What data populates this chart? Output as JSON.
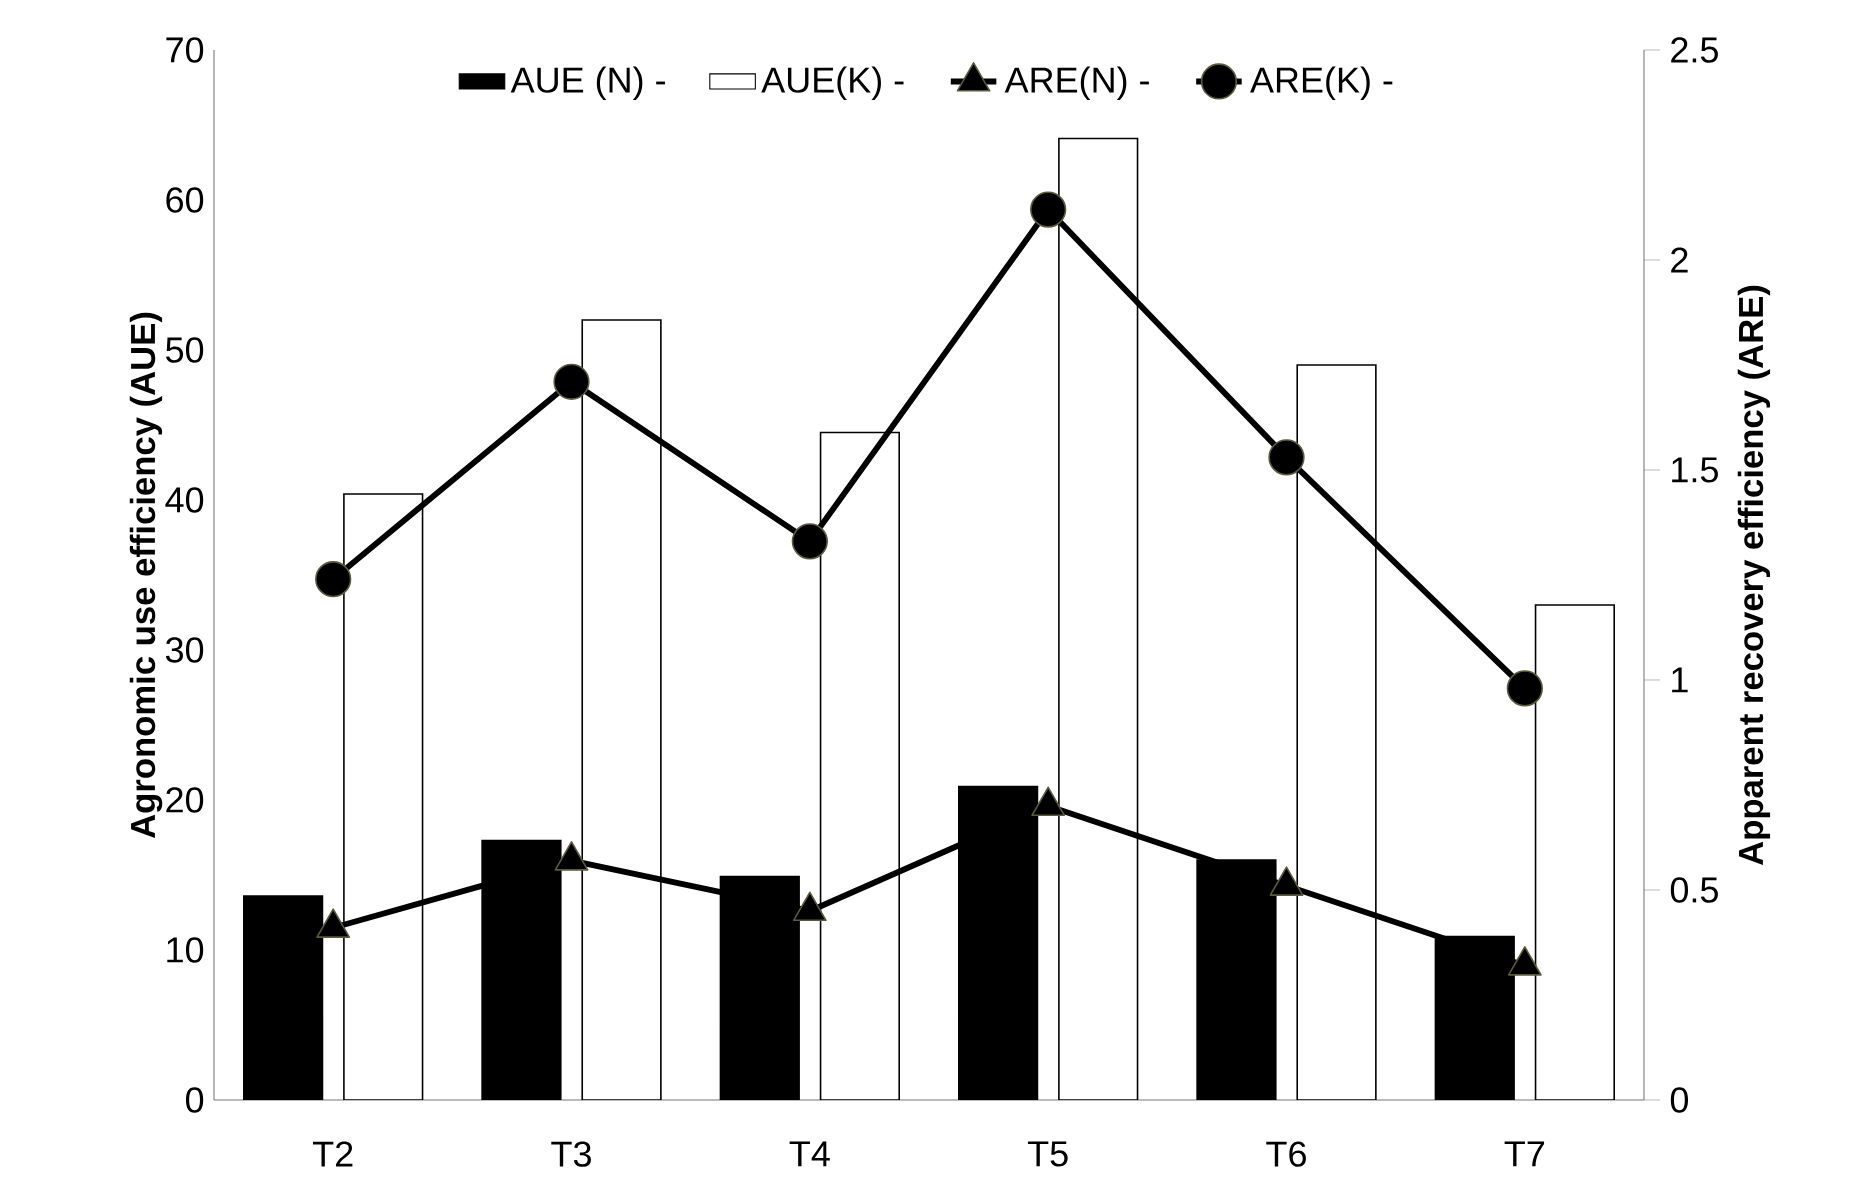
{
  "chart_data": {
    "type": "bar",
    "ylabel": "Agronomic use efficiency (AUE)",
    "y2label": "Apparent recovery efficiency (ARE)",
    "categories": [
      "T2",
      "T3",
      "T4",
      "T5",
      "T6",
      "T7"
    ],
    "series": [
      {
        "name": "AUE (N) -",
        "color": "#000000",
        "values": [
          13.6,
          17.3,
          14.9,
          20.9,
          16,
          10.9
        ]
      },
      {
        "name": "AUE(K) -",
        "color": "#ffffff",
        "values": [
          40.4,
          52,
          44.5,
          64.1,
          49,
          33
        ]
      },
      {
        "name": "ARE(N) -",
        "type": "line",
        "axis": "y2",
        "color": "#000000",
        "marker": "triangle",
        "values": [
          0.41,
          0.57,
          0.45,
          0.7,
          0.51,
          0.32
        ]
      },
      {
        "name": "ARE(K) -",
        "type": "line",
        "axis": "y2",
        "color": "#000000",
        "marker": "circle",
        "values": [
          1.24,
          1.71,
          1.33,
          2.12,
          1.53,
          0.98
        ]
      }
    ],
    "ylim": [
      0,
      70
    ],
    "yticks": [
      0,
      10,
      20,
      30,
      40,
      50,
      60,
      70
    ],
    "y2lim": [
      0,
      2.5
    ],
    "y2ticks": [
      0,
      0.5,
      1,
      1.5,
      2,
      2.5
    ],
    "legend": "top",
    "grid": false
  }
}
